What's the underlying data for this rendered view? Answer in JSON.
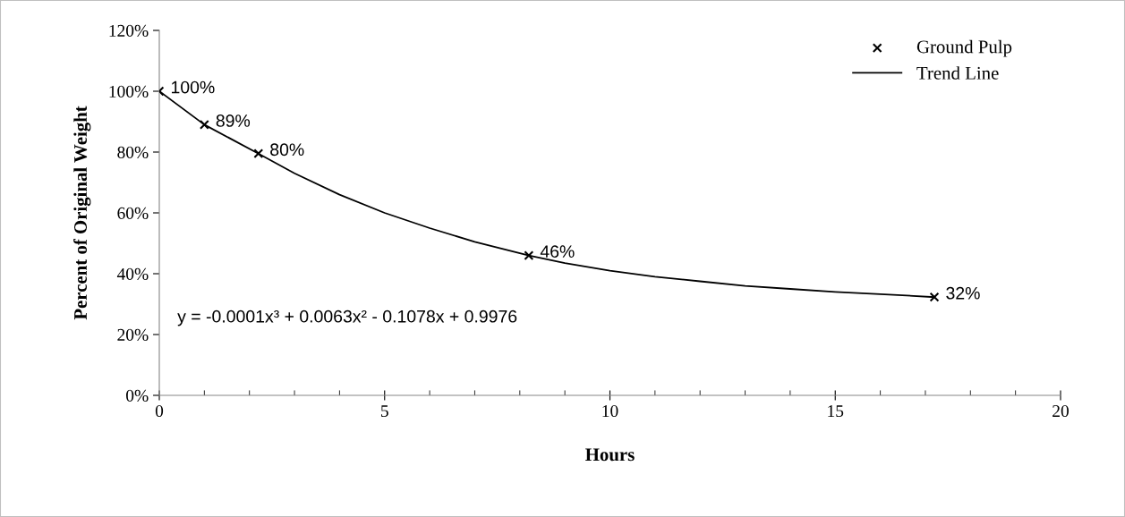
{
  "chart_data": {
    "type": "scatter",
    "xlabel": "Hours",
    "ylabel": "Percent of Original Weight",
    "xlim": [
      0,
      20
    ],
    "xticks": [
      0,
      5,
      10,
      15,
      20
    ],
    "ylim": [
      0,
      120
    ],
    "yticks": [
      {
        "value": 0,
        "label": "0%"
      },
      {
        "value": 20,
        "label": "20%"
      },
      {
        "value": 40,
        "label": "40%"
      },
      {
        "value": 60,
        "label": "60%"
      },
      {
        "value": 80,
        "label": "80%"
      },
      {
        "value": 100,
        "label": "100%"
      },
      {
        "value": 120,
        "label": "120%"
      }
    ],
    "grid": false,
    "legend": "top right",
    "series": [
      {
        "name": "Ground Pulp",
        "color": "#000000",
        "marker": "cross",
        "x": [
          0,
          1.0,
          2.2,
          8.2,
          17.2
        ],
        "values": [
          100,
          89,
          79.5,
          46,
          32.3
        ],
        "value_labels": [
          "100%",
          "89%",
          "80%",
          "46%",
          "32%"
        ]
      },
      {
        "name": "Trend Line",
        "type": "line",
        "color": "#000000",
        "line_style": "solid",
        "marker": "none",
        "x": [
          0,
          1,
          2.2,
          3,
          4,
          5,
          6,
          7,
          8.2,
          9,
          10,
          11,
          12,
          13,
          14,
          15,
          16,
          17.2
        ],
        "values": [
          100,
          89,
          79.5,
          73,
          66,
          60,
          55,
          50.5,
          46,
          43.5,
          41,
          39,
          37.5,
          36,
          35,
          34,
          33.3,
          32.3
        ]
      }
    ],
    "annotations": [
      "y = -0.0001x³ + 0.0063x² - 0.1078x + 0.9976"
    ]
  }
}
